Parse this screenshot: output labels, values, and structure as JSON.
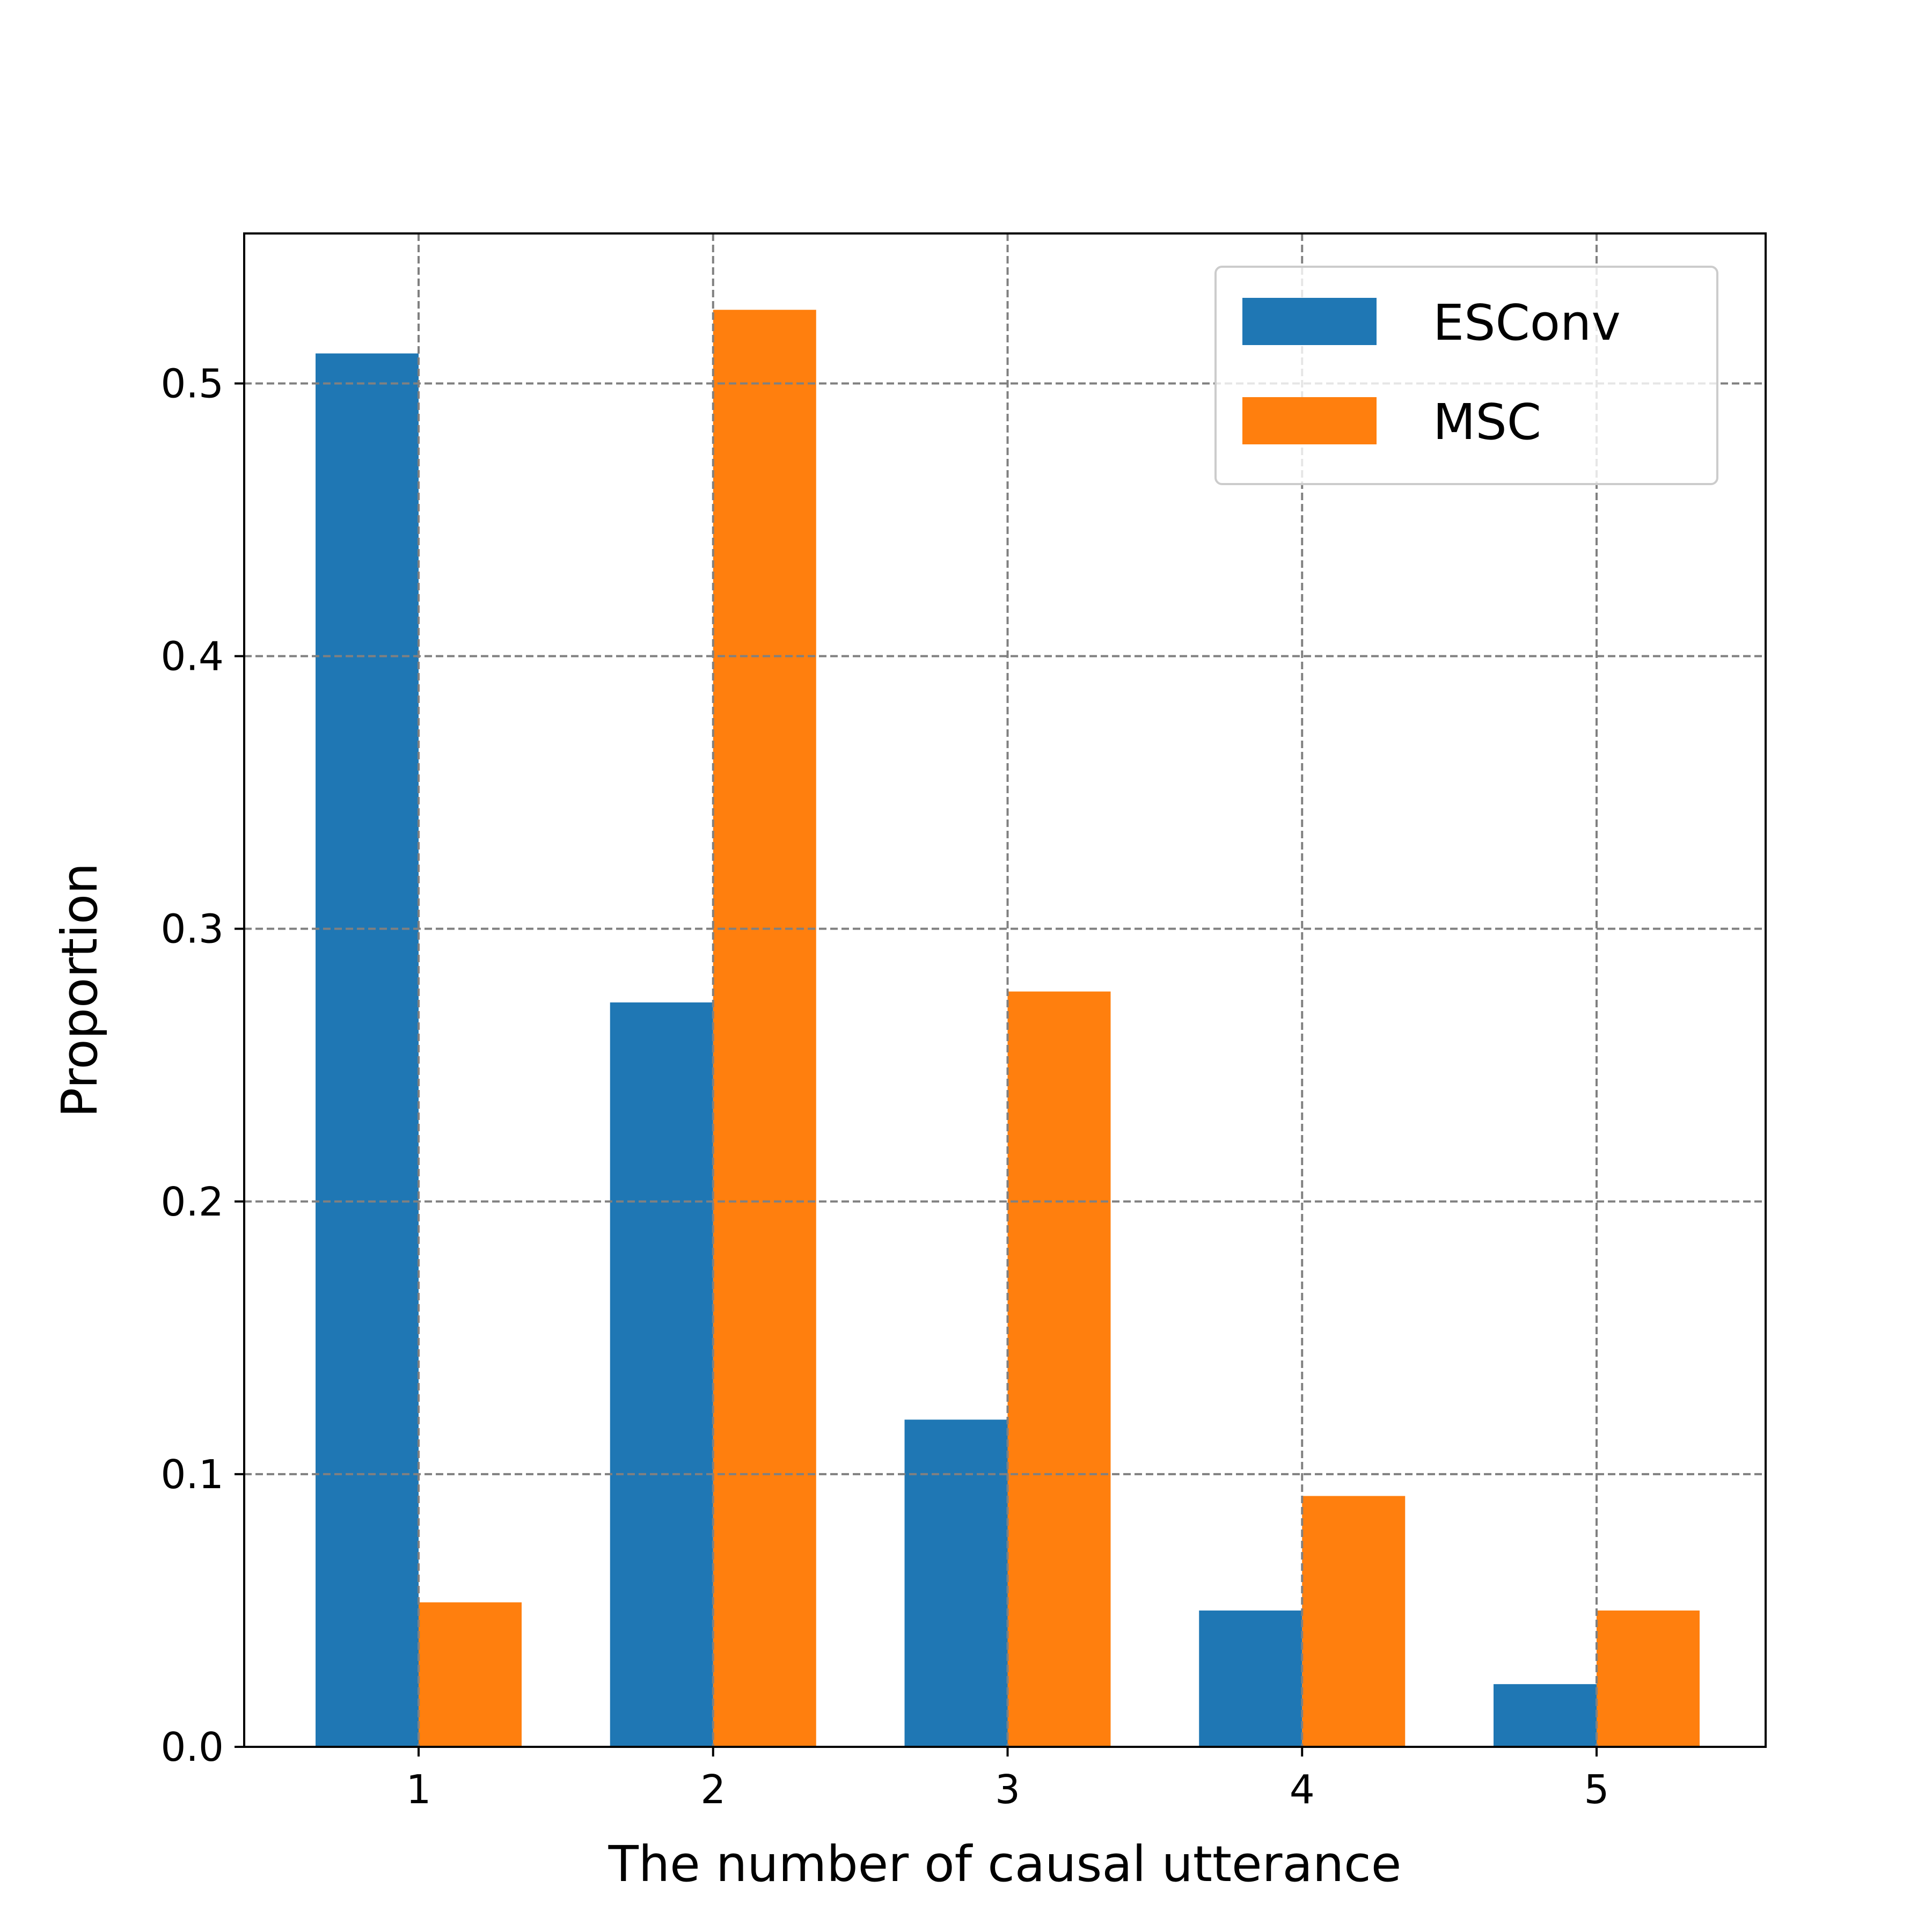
{
  "colors": {
    "ESConv": "#1f77b4",
    "MSC": "#ff7f0e",
    "grid": "#808080",
    "axis": "#000000",
    "background": "#ffffff"
  },
  "chart_data": {
    "type": "bar",
    "title": "",
    "xlabel": "The number of causal utterance",
    "ylabel": "Proportion",
    "categories": [
      "1",
      "2",
      "3",
      "4",
      "5"
    ],
    "series": [
      {
        "name": "ESConv",
        "values": [
          0.511,
          0.273,
          0.12,
          0.05,
          0.023
        ]
      },
      {
        "name": "MSC",
        "values": [
          0.053,
          0.527,
          0.277,
          0.092,
          0.05
        ]
      }
    ],
    "ylim": [
      0,
      0.555
    ],
    "yticks": [
      "0.0",
      "0.1",
      "0.2",
      "0.3",
      "0.4",
      "0.5"
    ],
    "grid": true,
    "grid_style": "dashed",
    "legend_position": "top-right"
  }
}
